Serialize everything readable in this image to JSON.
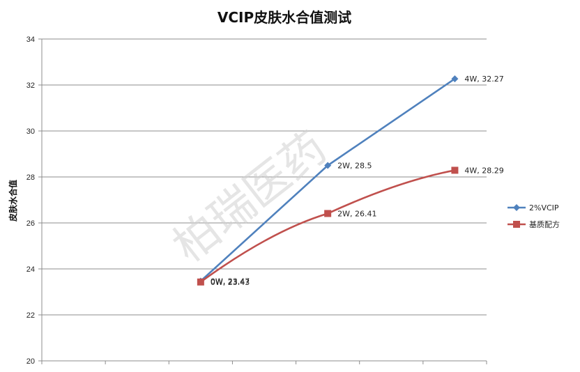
{
  "chart_data": {
    "type": "line",
    "title": "VCIP皮肤水合值测试",
    "xlabel": "",
    "ylabel": "皮肤水合值",
    "ylim": [
      20,
      34
    ],
    "yticks": [
      20,
      22,
      24,
      26,
      28,
      30,
      32,
      34
    ],
    "grid": true,
    "legend_position": "right",
    "x_categories_count": 7,
    "watermark": "柏瑞医药",
    "series": [
      {
        "name": "2%VCIP",
        "color": "#4F81BD",
        "marker": "diamond",
        "points": [
          {
            "x": "0W",
            "y": 23.47,
            "label": "0W, 23.47"
          },
          {
            "x": "2W",
            "y": 28.5,
            "label": "2W, 28.5"
          },
          {
            "x": "4W",
            "y": 32.27,
            "label": "4W, 32.27"
          }
        ]
      },
      {
        "name": "基质配方",
        "color": "#C0504D",
        "marker": "square",
        "points": [
          {
            "x": "0W",
            "y": 23.43,
            "label": "0W, 23.43"
          },
          {
            "x": "2W",
            "y": 26.41,
            "label": "2W, 26.41"
          },
          {
            "x": "4W",
            "y": 28.29,
            "label": "4W, 28.29"
          }
        ]
      }
    ],
    "point_category_index": [
      2,
      4,
      6
    ]
  }
}
